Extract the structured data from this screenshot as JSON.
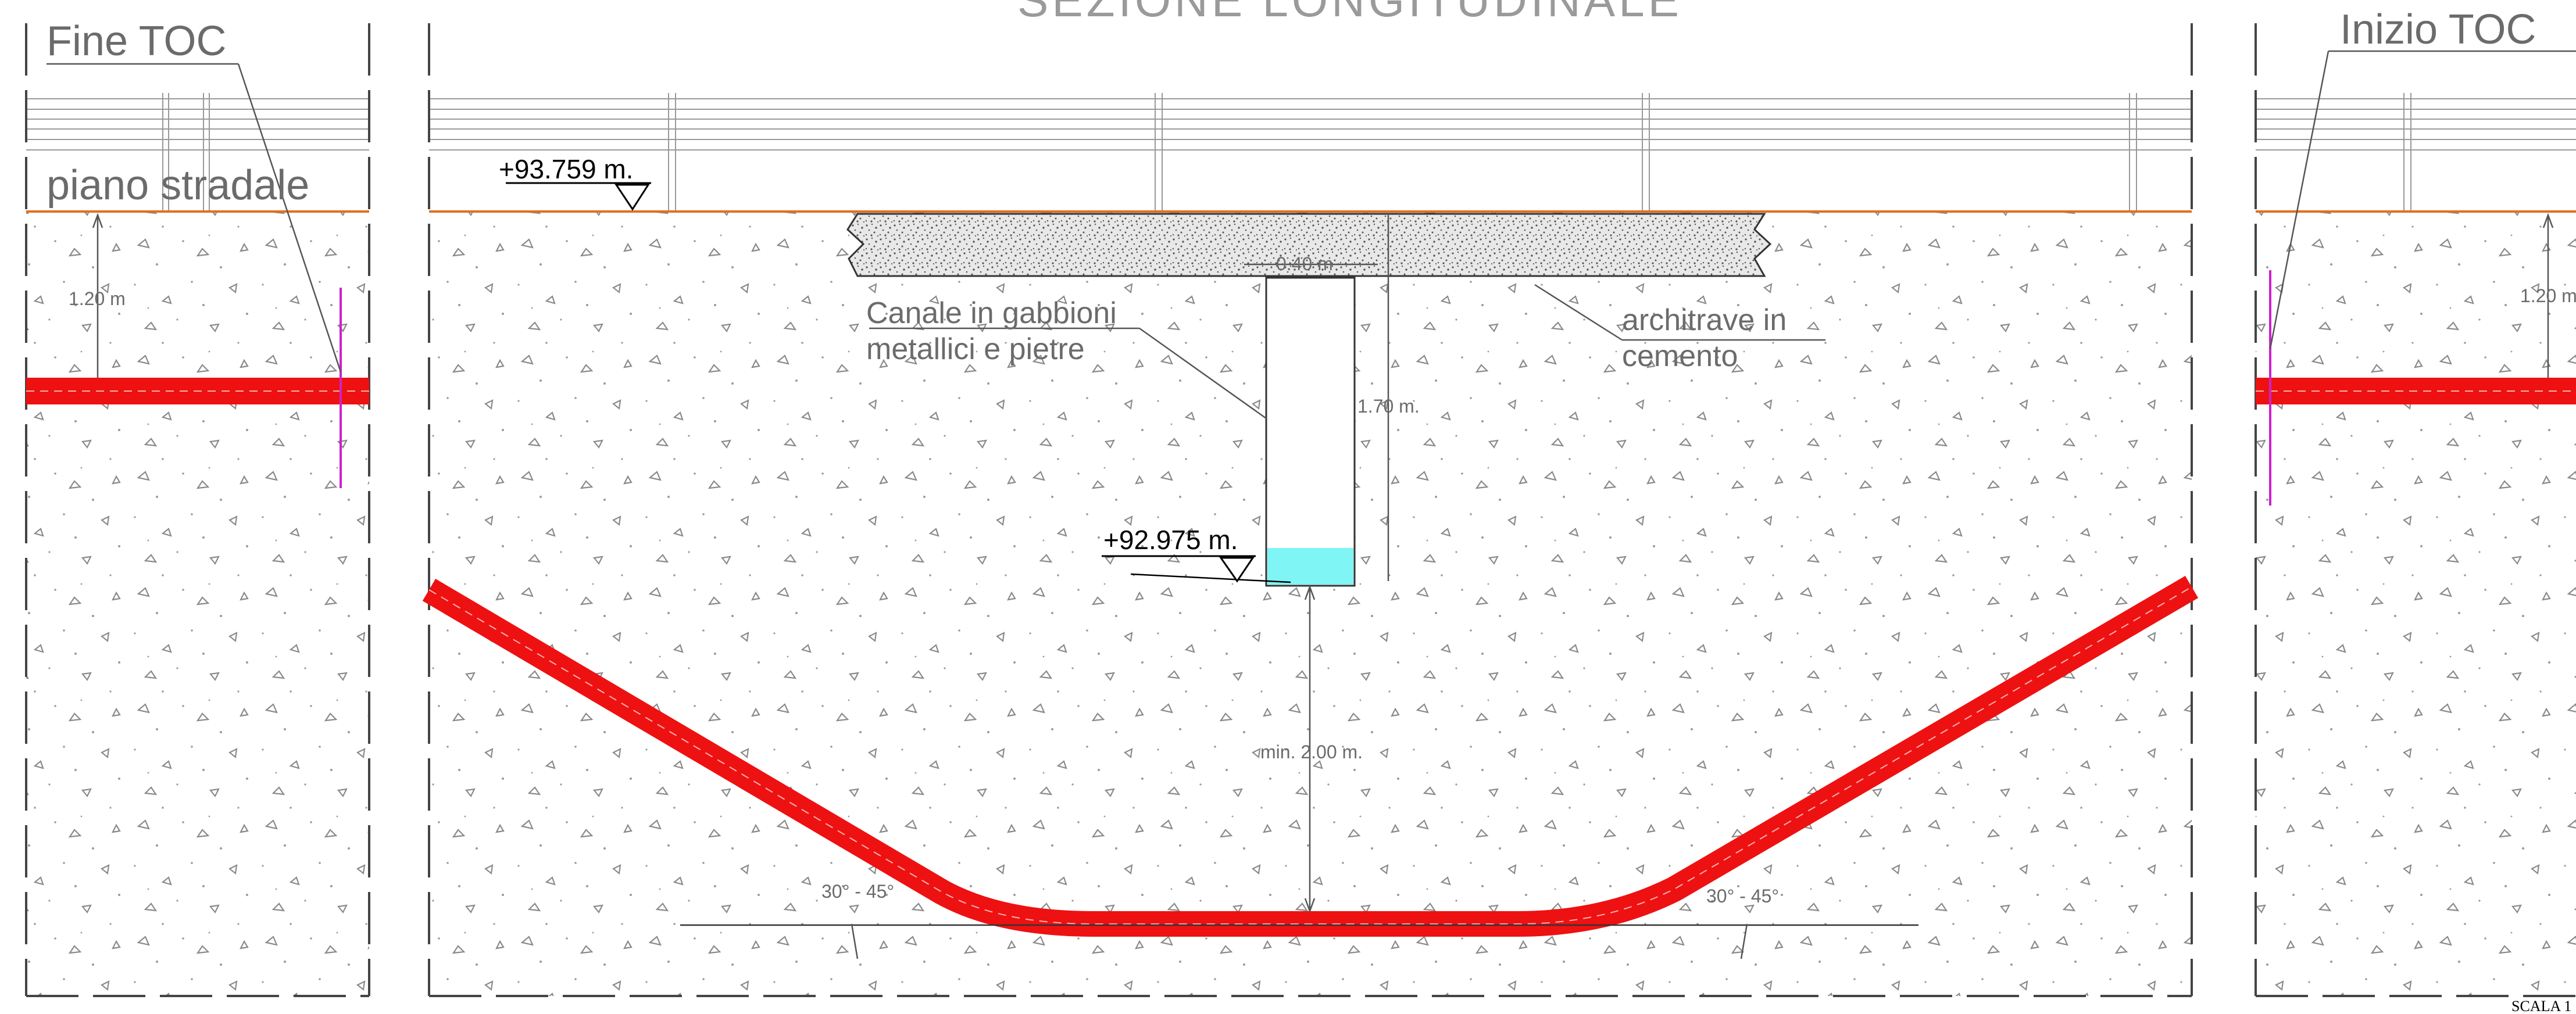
{
  "title": "SEZIONE LONGITUDINALE",
  "labels": {
    "fine_toc": "Fine TOC",
    "inizio_toc": "Inizio TOC",
    "piano_stradale": "piano stradale",
    "canale_line1": "Canale in gabbioni",
    "canale_line2": "metallici e pietre",
    "architrave_line1": "architrave in",
    "architrave_line2": "cemento",
    "scala": "SCALA 1"
  },
  "elevations": {
    "road": "+93.759 m.",
    "channel_bottom": "+92.975 m."
  },
  "dimensions": {
    "cover_left": "1.20 m",
    "cover_right": "1.20 m",
    "channel_width": "0.40 m",
    "channel_depth": "1.70 m.",
    "min_clearance": "min. 2.00 m.",
    "angle_left": "30° - 45°",
    "angle_right": "30° - 45°"
  },
  "colors": {
    "pipe": "#ee1111",
    "pipe_dark": "#b00000",
    "road_line": "#e07020",
    "water": "#7ff5f5",
    "marker": "#cc22cc",
    "soil_mark": "#8a8a8a"
  }
}
